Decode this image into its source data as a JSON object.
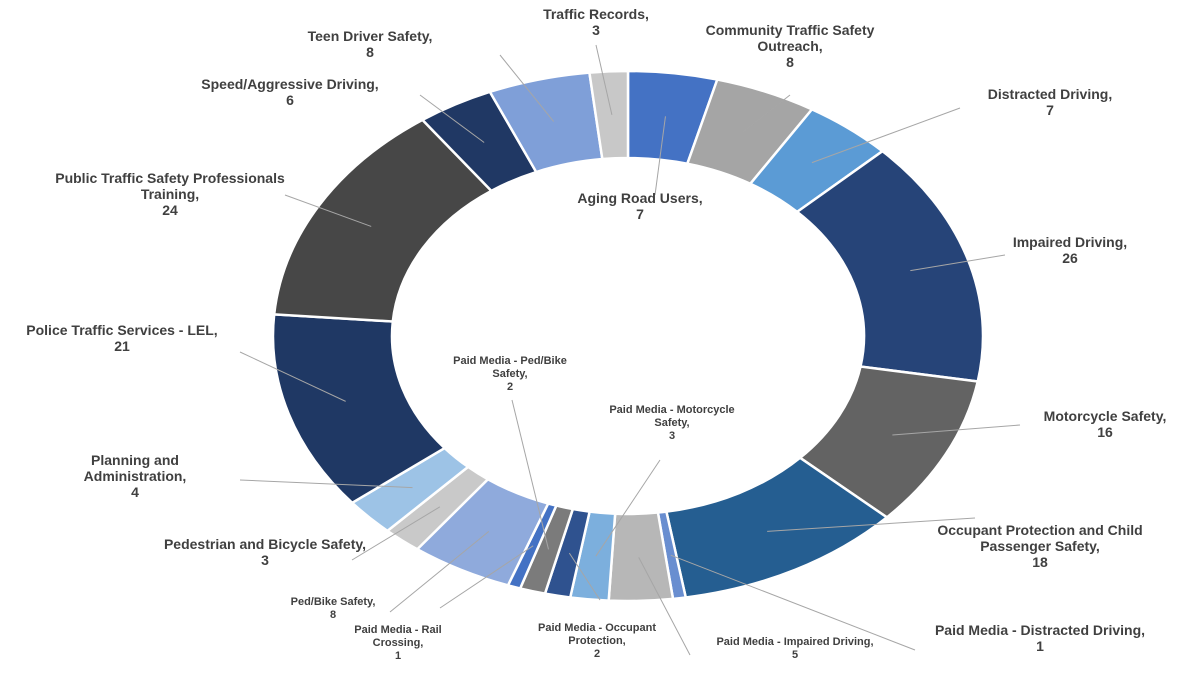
{
  "chart_data": {
    "type": "donut",
    "categories": [
      "Aging Road Users,",
      "Community Traffic Safety Outreach,",
      "Distracted Driving,",
      "Impaired Driving,",
      "Motorcycle Safety,",
      "Occupant Protection and Child Passenger Safety,",
      "Paid Media - Distracted Driving,",
      "Paid Media - Impaired Driving,",
      "Paid Media - Motorcycle Safety,",
      "Paid Media - Occupant Protection,",
      "Paid Media - Ped/Bike Safety,",
      "Paid Media - Rail Crossing,",
      "Ped/Bike Safety,",
      "Pedestrian and Bicycle Safety,",
      "Planning and Administration,",
      "Police Traffic Services - LEL,",
      "Public Traffic Safety Professionals Training,",
      "Speed/Aggressive Driving,",
      "Teen Driver Safety,",
      "Traffic Records,"
    ],
    "values": [
      7,
      8,
      7,
      26,
      16,
      18,
      1,
      5,
      3,
      2,
      2,
      1,
      8,
      3,
      4,
      21,
      24,
      6,
      8,
      3
    ],
    "colors": [
      "#4472c4",
      "#a5a5a5",
      "#5b9bd5",
      "#264478",
      "#636363",
      "#255e91",
      "#698ed0",
      "#b7b7b7",
      "#7cafdd",
      "#2f528f",
      "#7b7b7b",
      "#4472c4",
      "#8faadc",
      "#c9c9c9",
      "#9dc3e6",
      "#1f3864",
      "#474747",
      "#203864",
      "#7f9fd8",
      "#c8c8c8"
    ]
  }
}
